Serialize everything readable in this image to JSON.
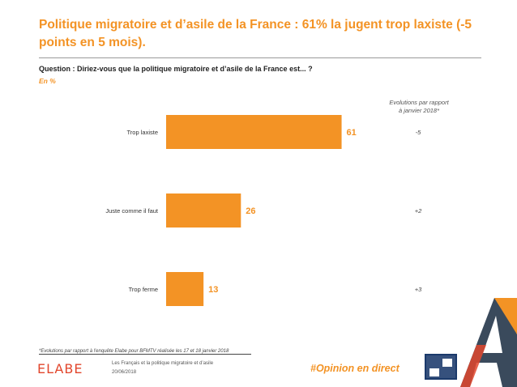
{
  "header": {
    "title": "Politique migratoire et d’asile de la France : 61% la jugent trop laxiste (-5 points en 5 mois).",
    "question": "Question : Diriez-vous que la politique migratoire et d’asile de la France est... ?",
    "unit": "En  %"
  },
  "evolution_header": {
    "line1": "Evolutions par rapport",
    "line2": "à janvier 2018*"
  },
  "chart_data": {
    "type": "bar",
    "orientation": "horizontal",
    "categories": [
      "Trop laxiste",
      "Juste comme il faut",
      "Trop ferme"
    ],
    "values": [
      61,
      26,
      13
    ],
    "evolutions": [
      "-5",
      "+2",
      "+3"
    ],
    "bar_color": "#f39325",
    "value_label_color": "#f39325",
    "xlim": [
      0,
      100
    ],
    "grid": false
  },
  "footer": {
    "footnote": "*Evolutions par rapport à l'enquête Elabe pour BFMTV réalisée les 17 et 18 janvier 2018",
    "logo": "ELABE",
    "doc_title": "Les Français et la politique migratoire et d’asile",
    "doc_date": "20/06/2018",
    "hashtag": "#Opinion en direct",
    "partner_logo": "BFM TV"
  },
  "colors": {
    "accent": "#f39325",
    "logo_red": "#e2472d"
  }
}
